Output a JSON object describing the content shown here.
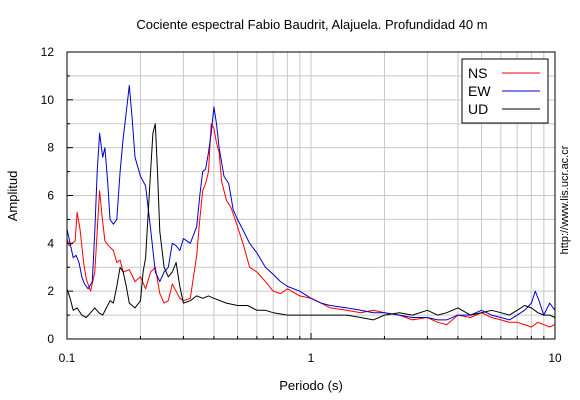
{
  "chart_data": {
    "type": "line",
    "title": "Cociente espectral Fabio Baudrit, Alajuela. Profundidad 40 m",
    "xlabel": "Periodo (s)",
    "ylabel": "Amplitud",
    "xscale": "log",
    "xlim": [
      0.1,
      10
    ],
    "ylim": [
      0,
      12
    ],
    "x_tick_labels": [
      "0.1",
      "1",
      "10"
    ],
    "y_tick_labels": [
      "0",
      "2",
      "4",
      "6",
      "8",
      "10",
      "12"
    ],
    "grid": true,
    "legend_position": "top-right",
    "series": [
      {
        "name": "NS",
        "color": "#ff0000",
        "points": [
          [
            0.1,
            4.2
          ],
          [
            0.102,
            3.9
          ],
          [
            0.105,
            4.0
          ],
          [
            0.108,
            4.1
          ],
          [
            0.11,
            5.3
          ],
          [
            0.113,
            4.6
          ],
          [
            0.117,
            3.2
          ],
          [
            0.12,
            2.5
          ],
          [
            0.125,
            2.0
          ],
          [
            0.13,
            2.8
          ],
          [
            0.133,
            4.5
          ],
          [
            0.136,
            6.2
          ],
          [
            0.139,
            5.2
          ],
          [
            0.143,
            4.1
          ],
          [
            0.148,
            3.9
          ],
          [
            0.155,
            3.7
          ],
          [
            0.16,
            3.2
          ],
          [
            0.165,
            3.3
          ],
          [
            0.17,
            2.8
          ],
          [
            0.18,
            2.9
          ],
          [
            0.19,
            2.4
          ],
          [
            0.2,
            2.6
          ],
          [
            0.21,
            2.1
          ],
          [
            0.22,
            2.8
          ],
          [
            0.23,
            3.0
          ],
          [
            0.24,
            1.9
          ],
          [
            0.25,
            1.5
          ],
          [
            0.26,
            1.6
          ],
          [
            0.27,
            2.3
          ],
          [
            0.28,
            2.0
          ],
          [
            0.29,
            1.7
          ],
          [
            0.3,
            1.6
          ],
          [
            0.32,
            1.7
          ],
          [
            0.34,
            3.5
          ],
          [
            0.35,
            5.0
          ],
          [
            0.36,
            6.2
          ],
          [
            0.37,
            6.5
          ],
          [
            0.38,
            7.0
          ],
          [
            0.39,
            9.0
          ],
          [
            0.4,
            8.8
          ],
          [
            0.41,
            8.2
          ],
          [
            0.42,
            7.8
          ],
          [
            0.43,
            6.6
          ],
          [
            0.45,
            5.8
          ],
          [
            0.47,
            5.5
          ],
          [
            0.5,
            4.7
          ],
          [
            0.53,
            3.9
          ],
          [
            0.56,
            3.0
          ],
          [
            0.6,
            2.8
          ],
          [
            0.65,
            2.4
          ],
          [
            0.7,
            2.0
          ],
          [
            0.75,
            1.9
          ],
          [
            0.8,
            2.1
          ],
          [
            0.9,
            1.8
          ],
          [
            1.0,
            1.7
          ],
          [
            1.1,
            1.5
          ],
          [
            1.2,
            1.3
          ],
          [
            1.4,
            1.2
          ],
          [
            1.6,
            1.1
          ],
          [
            1.8,
            1.2
          ],
          [
            2.0,
            1.1
          ],
          [
            2.3,
            1.0
          ],
          [
            2.6,
            0.8
          ],
          [
            3.0,
            0.9
          ],
          [
            3.3,
            0.7
          ],
          [
            3.6,
            0.6
          ],
          [
            4.0,
            1.0
          ],
          [
            4.5,
            0.9
          ],
          [
            5.0,
            1.1
          ],
          [
            5.5,
            0.9
          ],
          [
            6.0,
            0.8
          ],
          [
            6.5,
            0.7
          ],
          [
            7.0,
            0.7
          ],
          [
            7.5,
            0.6
          ],
          [
            8.0,
            0.5
          ],
          [
            8.5,
            0.7
          ],
          [
            9.0,
            0.6
          ],
          [
            9.5,
            0.5
          ],
          [
            10.0,
            0.6
          ]
        ]
      },
      {
        "name": "EW",
        "color": "#0000cc",
        "points": [
          [
            0.1,
            4.6
          ],
          [
            0.103,
            4.0
          ],
          [
            0.106,
            3.4
          ],
          [
            0.109,
            3.5
          ],
          [
            0.112,
            3.2
          ],
          [
            0.115,
            2.6
          ],
          [
            0.118,
            2.3
          ],
          [
            0.122,
            2.1
          ],
          [
            0.127,
            2.4
          ],
          [
            0.13,
            4.5
          ],
          [
            0.133,
            7.0
          ],
          [
            0.136,
            8.6
          ],
          [
            0.14,
            7.6
          ],
          [
            0.143,
            8.0
          ],
          [
            0.147,
            6.5
          ],
          [
            0.15,
            5.0
          ],
          [
            0.155,
            4.8
          ],
          [
            0.16,
            5.0
          ],
          [
            0.165,
            7.0
          ],
          [
            0.17,
            8.4
          ],
          [
            0.175,
            9.5
          ],
          [
            0.18,
            10.6
          ],
          [
            0.185,
            9.2
          ],
          [
            0.19,
            7.6
          ],
          [
            0.2,
            6.8
          ],
          [
            0.21,
            6.4
          ],
          [
            0.22,
            4.6
          ],
          [
            0.23,
            2.8
          ],
          [
            0.24,
            2.4
          ],
          [
            0.25,
            2.8
          ],
          [
            0.26,
            3.0
          ],
          [
            0.27,
            4.0
          ],
          [
            0.28,
            3.9
          ],
          [
            0.29,
            3.7
          ],
          [
            0.3,
            4.2
          ],
          [
            0.32,
            4.0
          ],
          [
            0.34,
            4.7
          ],
          [
            0.35,
            6.0
          ],
          [
            0.36,
            7.0
          ],
          [
            0.37,
            7.1
          ],
          [
            0.38,
            7.8
          ],
          [
            0.39,
            8.6
          ],
          [
            0.4,
            9.7
          ],
          [
            0.41,
            9.0
          ],
          [
            0.42,
            8.0
          ],
          [
            0.44,
            6.8
          ],
          [
            0.46,
            6.5
          ],
          [
            0.48,
            5.4
          ],
          [
            0.5,
            5.0
          ],
          [
            0.53,
            4.5
          ],
          [
            0.56,
            4.0
          ],
          [
            0.6,
            3.6
          ],
          [
            0.65,
            3.0
          ],
          [
            0.7,
            2.7
          ],
          [
            0.75,
            2.4
          ],
          [
            0.8,
            2.2
          ],
          [
            0.9,
            2.0
          ],
          [
            1.0,
            1.7
          ],
          [
            1.1,
            1.5
          ],
          [
            1.2,
            1.4
          ],
          [
            1.4,
            1.3
          ],
          [
            1.6,
            1.2
          ],
          [
            1.8,
            1.1
          ],
          [
            2.0,
            1.1
          ],
          [
            2.3,
            1.0
          ],
          [
            2.6,
            0.9
          ],
          [
            3.0,
            0.9
          ],
          [
            3.3,
            0.8
          ],
          [
            3.6,
            0.8
          ],
          [
            4.0,
            1.0
          ],
          [
            4.5,
            1.0
          ],
          [
            5.0,
            1.2
          ],
          [
            5.5,
            1.0
          ],
          [
            6.0,
            0.9
          ],
          [
            6.5,
            0.8
          ],
          [
            7.0,
            1.0
          ],
          [
            7.5,
            1.2
          ],
          [
            8.0,
            1.5
          ],
          [
            8.3,
            2.0
          ],
          [
            8.6,
            1.6
          ],
          [
            9.0,
            1.0
          ],
          [
            9.5,
            1.5
          ],
          [
            10.0,
            1.2
          ]
        ]
      },
      {
        "name": "UD",
        "color": "#000000",
        "points": [
          [
            0.1,
            2.1
          ],
          [
            0.103,
            1.7
          ],
          [
            0.106,
            1.2
          ],
          [
            0.11,
            1.3
          ],
          [
            0.115,
            1.0
          ],
          [
            0.12,
            0.9
          ],
          [
            0.125,
            1.1
          ],
          [
            0.13,
            1.3
          ],
          [
            0.135,
            1.1
          ],
          [
            0.14,
            1.0
          ],
          [
            0.145,
            1.3
          ],
          [
            0.15,
            1.6
          ],
          [
            0.155,
            1.5
          ],
          [
            0.16,
            2.2
          ],
          [
            0.165,
            3.0
          ],
          [
            0.17,
            2.8
          ],
          [
            0.175,
            2.2
          ],
          [
            0.18,
            1.5
          ],
          [
            0.19,
            1.3
          ],
          [
            0.2,
            1.6
          ],
          [
            0.205,
            2.8
          ],
          [
            0.21,
            3.4
          ],
          [
            0.215,
            5.2
          ],
          [
            0.22,
            7.0
          ],
          [
            0.225,
            8.6
          ],
          [
            0.23,
            9.0
          ],
          [
            0.235,
            7.0
          ],
          [
            0.24,
            4.5
          ],
          [
            0.25,
            3.0
          ],
          [
            0.26,
            2.6
          ],
          [
            0.27,
            2.8
          ],
          [
            0.28,
            3.2
          ],
          [
            0.29,
            2.2
          ],
          [
            0.3,
            1.5
          ],
          [
            0.32,
            1.6
          ],
          [
            0.34,
            1.8
          ],
          [
            0.36,
            1.7
          ],
          [
            0.38,
            1.8
          ],
          [
            0.4,
            1.7
          ],
          [
            0.45,
            1.5
          ],
          [
            0.5,
            1.4
          ],
          [
            0.55,
            1.4
          ],
          [
            0.6,
            1.2
          ],
          [
            0.65,
            1.2
          ],
          [
            0.7,
            1.1
          ],
          [
            0.8,
            1.0
          ],
          [
            0.9,
            1.0
          ],
          [
            1.0,
            1.0
          ],
          [
            1.2,
            1.0
          ],
          [
            1.4,
            1.0
          ],
          [
            1.6,
            0.9
          ],
          [
            1.8,
            0.8
          ],
          [
            2.0,
            1.0
          ],
          [
            2.3,
            1.1
          ],
          [
            2.6,
            1.0
          ],
          [
            3.0,
            1.2
          ],
          [
            3.3,
            1.0
          ],
          [
            3.6,
            1.1
          ],
          [
            4.0,
            1.3
          ],
          [
            4.5,
            1.0
          ],
          [
            5.0,
            1.1
          ],
          [
            5.5,
            1.2
          ],
          [
            6.0,
            1.1
          ],
          [
            6.5,
            1.0
          ],
          [
            7.0,
            1.2
          ],
          [
            7.5,
            1.4
          ],
          [
            8.0,
            1.3
          ],
          [
            8.5,
            1.1
          ],
          [
            9.0,
            1.0
          ],
          [
            9.5,
            1.0
          ],
          [
            10.0,
            0.9
          ]
        ]
      }
    ]
  },
  "source_url": "http://www.lis.ucr.ac.cr"
}
